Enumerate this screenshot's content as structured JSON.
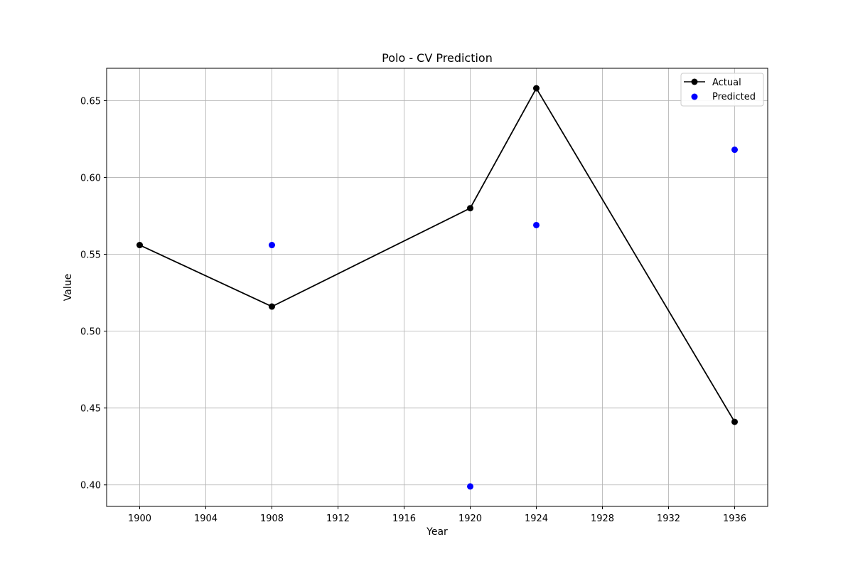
{
  "chart_data": {
    "type": "line",
    "title": "Polo - CV Prediction",
    "xlabel": "Year",
    "ylabel": "Value",
    "xlim": [
      1898,
      1938
    ],
    "ylim": [
      0.386,
      0.671
    ],
    "xticks": [
      1900,
      1904,
      1908,
      1912,
      1916,
      1920,
      1924,
      1928,
      1932,
      1936
    ],
    "yticks": [
      0.4,
      0.45,
      0.5,
      0.55,
      0.6,
      0.65
    ],
    "ytick_labels": [
      "0.40",
      "0.45",
      "0.50",
      "0.55",
      "0.60",
      "0.65"
    ],
    "grid": true,
    "legend_position": "top-right",
    "series": [
      {
        "name": "Actual",
        "style": "line-with-markers",
        "color": "#000000",
        "x": [
          1900,
          1908,
          1920,
          1924,
          1936
        ],
        "values": [
          0.556,
          0.516,
          0.58,
          0.658,
          0.441
        ]
      },
      {
        "name": "Predicted",
        "style": "scatter",
        "color": "#0000ff",
        "x": [
          1908,
          1920,
          1924,
          1936
        ],
        "values": [
          0.556,
          0.399,
          0.569,
          0.618
        ]
      }
    ]
  }
}
